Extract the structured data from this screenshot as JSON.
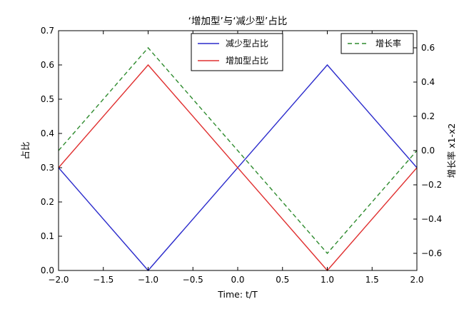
{
  "chart_data": {
    "type": "line",
    "title": "‘增加型’与‘减少型’占比",
    "xlabel": "Time: t/T",
    "ylabel_left": "占比",
    "ylabel_right": "增长率 x1-x2",
    "xlim": [
      -2.0,
      2.0
    ],
    "ylim_left": [
      0.0,
      0.7
    ],
    "ylim_right": [
      -0.7,
      0.7
    ],
    "x_ticks": [
      -2.0,
      -1.5,
      -1.0,
      -0.5,
      0.0,
      0.5,
      1.0,
      1.5,
      2.0
    ],
    "x_tick_labels": [
      "−2.0",
      "−1.5",
      "−1.0",
      "−0.5",
      "0.0",
      "0.5",
      "1.0",
      "1.5",
      "2.0"
    ],
    "y_left_ticks": [
      0.0,
      0.1,
      0.2,
      0.3,
      0.4,
      0.5,
      0.6,
      0.7
    ],
    "y_left_tick_labels": [
      "0.0",
      "0.1",
      "0.2",
      "0.3",
      "0.4",
      "0.5",
      "0.6",
      "0.7"
    ],
    "y_right_ticks": [
      -0.6,
      -0.4,
      -0.2,
      0.0,
      0.2,
      0.4,
      0.6
    ],
    "y_right_tick_labels": [
      "−0.6",
      "−0.4",
      "−0.2",
      "0.0",
      "0.2",
      "0.4",
      "0.6"
    ],
    "grid": false,
    "series": [
      {
        "name": "减少型占比",
        "axis": "left",
        "color": "#2c2ccc",
        "style": "solid",
        "x": [
          -2.0,
          -1.0,
          1.0,
          2.0
        ],
        "y": [
          0.3,
          0.0,
          0.6,
          0.3
        ]
      },
      {
        "name": "增加型占比",
        "axis": "left",
        "color": "#e03030",
        "style": "solid",
        "x": [
          -2.0,
          -1.0,
          1.0,
          2.0
        ],
        "y": [
          0.3,
          0.6,
          0.0,
          0.3
        ]
      },
      {
        "name": "增长率",
        "axis": "right",
        "color": "#2e8b2e",
        "style": "dashed",
        "x": [
          -2.0,
          -1.0,
          1.0,
          2.0
        ],
        "y": [
          0.0,
          0.6,
          -0.6,
          0.0
        ]
      }
    ],
    "legends": [
      {
        "placement": "upper-center",
        "entries": [
          "减少型占比",
          "增加型占比"
        ]
      },
      {
        "placement": "upper-right",
        "entries": [
          "增长率"
        ]
      }
    ]
  }
}
